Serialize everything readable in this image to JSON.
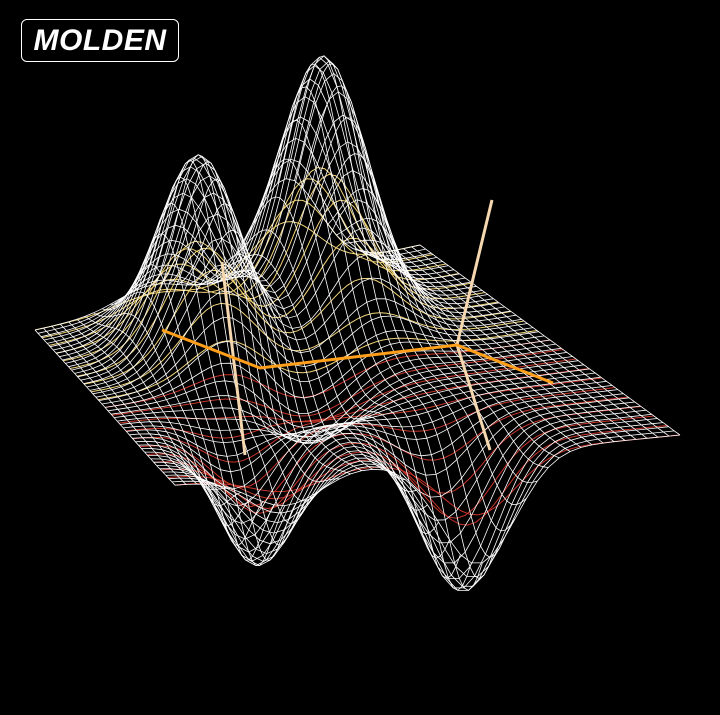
{
  "app": {
    "logo_text": "MOLDEN"
  },
  "colors": {
    "background": "#000000",
    "mesh": "#ffffff",
    "contour_positive": "#f2d479",
    "contour_negative": "#c8352a",
    "bond": "#ff9f1a",
    "axis_bond": "#f6d8b0"
  },
  "scene": {
    "type": "3d-wireframe-surface",
    "description_items": [
      "wireframe-surface",
      "contour-lines",
      "molecular-bonds"
    ]
  }
}
